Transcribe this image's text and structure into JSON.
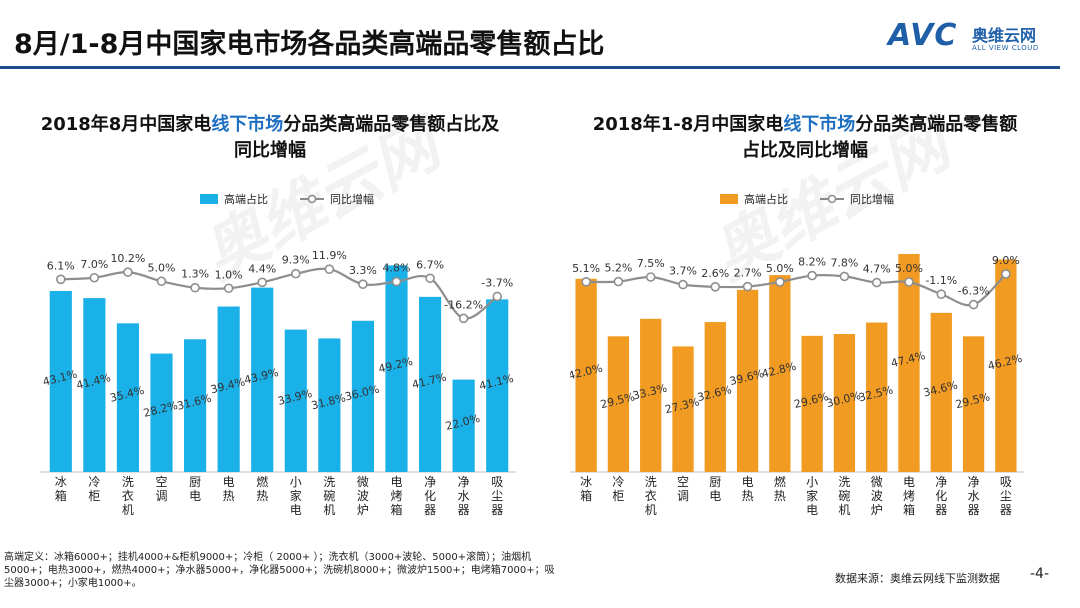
{
  "page": {
    "title": "8月/1-8月中国家电市场各品类高端品零售额占比",
    "logo": {
      "mark": "AVC",
      "name_cn": "奥维云网",
      "name_en": "ALL VIEW CLOUD"
    },
    "watermark_text": "奥维云网",
    "footnote": "高端定义：冰箱6000+；挂机4000+&柜机9000+；冷柜（ 2000+ ）；洗衣机（3000+波轮、5000+滚筒）；油烟机5000+；电热3000+，燃热4000+；净水器5000+，净化器5000+；洗碗机8000+；微波炉1500+；电烤箱7000+；吸尘器3000+；小家电1000+。",
    "source": "数据来源：奥维云网线下监测数据",
    "page_number": "-4-"
  },
  "colors": {
    "blue_bar": "#1ab0e8",
    "orange_bar": "#f29b22",
    "line": "#9a9a9a",
    "title_rule": "#1f4e8c",
    "highlight": "#1f6fc0"
  },
  "chart_data": [
    {
      "type": "bar",
      "title_pre": "2018年8月中国家电",
      "title_hl": "线下市场",
      "title_post": "分品类高端品零售额占比及同比增幅",
      "legend": {
        "bar": "高端占比",
        "line": "同比增幅"
      },
      "categories": [
        "冰箱",
        "冷柜",
        "洗衣机",
        "空调",
        "厨电",
        "电热",
        "燃热",
        "小家电",
        "洗碗机",
        "微波炉",
        "电烤箱",
        "净化器",
        "净水器",
        "吸尘器"
      ],
      "series": [
        {
          "name": "高端占比",
          "type": "bar",
          "values": [
            43.1,
            41.4,
            35.4,
            28.2,
            31.6,
            39.4,
            43.9,
            33.9,
            31.8,
            36.0,
            49.2,
            41.7,
            22.0,
            41.1
          ],
          "labels": [
            "43.1%",
            "41.4%",
            "35.4%",
            "28.2%",
            "31.6%",
            "39.4%",
            "43.9%",
            "33.9%",
            "31.8%",
            "36.0%",
            "49.2%",
            "41.7%",
            "22.0%",
            "41.1%"
          ]
        },
        {
          "name": "同比增幅",
          "type": "line",
          "values": [
            6.1,
            7.0,
            10.2,
            5.0,
            1.3,
            1.0,
            4.4,
            9.3,
            11.9,
            3.3,
            4.8,
            6.7,
            -16.2,
            -3.7
          ],
          "labels": [
            "6.1%",
            "7.0%",
            "10.2%",
            "5.0%",
            "1.3%",
            "1.0%",
            "4.4%",
            "9.3%",
            "11.9%",
            "3.3%",
            "4.8%",
            "6.7%",
            "-16.2%",
            "-3.7%"
          ]
        }
      ],
      "bar_color": "#1ab0e8"
    },
    {
      "type": "bar",
      "title_pre": "2018年1-8月中国家电",
      "title_hl": "线下市场",
      "title_post": "分品类高端品零售额占比及同比增幅",
      "legend": {
        "bar": "高端占比",
        "line": "同比增幅"
      },
      "categories": [
        "冰箱",
        "冷柜",
        "洗衣机",
        "空调",
        "厨电",
        "电热",
        "燃热",
        "小家电",
        "洗碗机",
        "微波炉",
        "电烤箱",
        "净化器",
        "净水器",
        "吸尘器"
      ],
      "series": [
        {
          "name": "高端占比",
          "type": "bar",
          "values": [
            42.0,
            29.5,
            33.3,
            27.3,
            32.6,
            39.6,
            42.8,
            29.6,
            30.0,
            32.5,
            47.4,
            34.6,
            29.5,
            46.2
          ],
          "labels": [
            "42.0%",
            "29.5%",
            "33.3%",
            "27.3%",
            "32.6%",
            "39.6%",
            "42.8%",
            "29.6%",
            "30.0%",
            "32.5%",
            "47.4%",
            "34.6%",
            "29.5%",
            "46.2%"
          ]
        },
        {
          "name": "同比增幅",
          "type": "line",
          "values": [
            5.1,
            5.2,
            7.5,
            3.7,
            2.6,
            2.7,
            5.0,
            8.2,
            7.8,
            4.7,
            5.0,
            -1.1,
            -6.3,
            9.0
          ],
          "labels": [
            "5.1%",
            "5.2%",
            "7.5%",
            "3.7%",
            "2.6%",
            "2.7%",
            "5.0%",
            "8.2%",
            "7.8%",
            "4.7%",
            "5.0%",
            "-1.1%",
            "-6.3%",
            "9.0%"
          ]
        }
      ],
      "bar_color": "#f29b22"
    }
  ]
}
